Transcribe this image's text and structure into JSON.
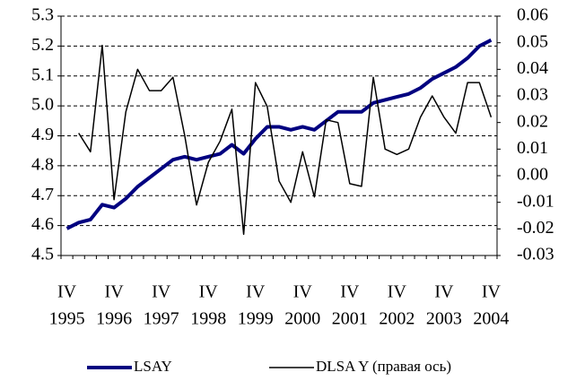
{
  "chart_data": {
    "type": "line",
    "categories": [
      "IV",
      null,
      null,
      null,
      "IV",
      null,
      null,
      null,
      "IV",
      null,
      null,
      null,
      "IV",
      null,
      null,
      null,
      "IV",
      null,
      null,
      null,
      "IV",
      null,
      null,
      null,
      "IV",
      null,
      null,
      null,
      "IV",
      null,
      null,
      null,
      "IV",
      null,
      null,
      null,
      "IV"
    ],
    "years": [
      "1995",
      null,
      null,
      null,
      "1996",
      null,
      null,
      null,
      "1997",
      null,
      null,
      null,
      "1998",
      null,
      null,
      null,
      "1999",
      null,
      null,
      null,
      "2000",
      null,
      null,
      null,
      "2001",
      null,
      null,
      null,
      "2002",
      null,
      null,
      null,
      "2003",
      null,
      null,
      null,
      "2004"
    ],
    "series": [
      {
        "name": "LSAY",
        "color": "#000080",
        "line_width": 4,
        "axis": "y",
        "values": [
          4.59,
          4.61,
          4.62,
          4.67,
          4.66,
          4.69,
          4.73,
          4.76,
          4.79,
          4.82,
          4.83,
          4.82,
          4.83,
          4.84,
          4.87,
          4.84,
          4.89,
          4.93,
          4.93,
          4.92,
          4.93,
          4.92,
          4.95,
          4.98,
          4.98,
          4.98,
          5.01,
          5.02,
          5.03,
          5.04,
          5.06,
          5.09,
          5.11,
          5.13,
          5.16,
          5.2,
          5.22
        ]
      },
      {
        "name": "DLSA Y (правая ось)",
        "color": "#000000",
        "line_width": 1.5,
        "axis": "y2",
        "values": [
          null,
          0.016,
          0.009,
          0.049,
          -0.009,
          0.024,
          0.04,
          0.032,
          0.032,
          0.037,
          0.015,
          -0.011,
          0.005,
          0.013,
          0.025,
          -0.022,
          0.035,
          0.026,
          -0.002,
          -0.01,
          0.009,
          -0.008,
          0.021,
          0.02,
          -0.003,
          -0.004,
          0.037,
          0.01,
          0.008,
          0.01,
          0.022,
          0.03,
          0.022,
          0.016,
          0.035,
          0.035,
          0.022
        ]
      }
    ],
    "ylim": [
      4.5,
      5.3
    ],
    "yticks": [
      4.5,
      4.6,
      4.7,
      4.8,
      4.9,
      {
        "value": 5,
        "label": "5.0"
      },
      5.1,
      5.2,
      5.3
    ],
    "y2lim": [
      -0.03,
      0.06
    ],
    "y2ticks": [
      -0.03,
      -0.02,
      -0.01,
      {
        "value": 0,
        "label": "0.00"
      },
      0.01,
      0.02,
      0.03,
      0.04,
      0.05,
      0.06
    ],
    "grid": true,
    "legend": "bottom"
  }
}
